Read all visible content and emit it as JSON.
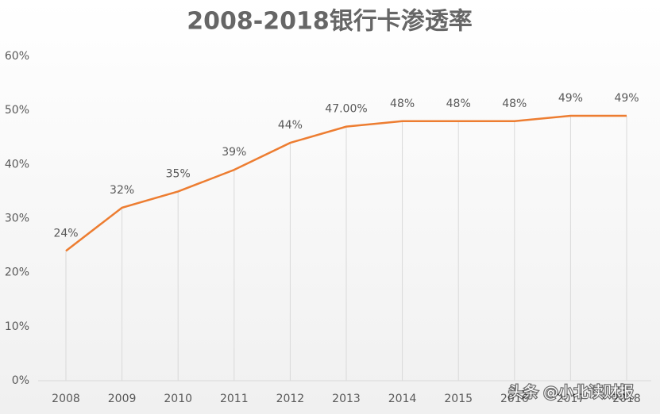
{
  "chart_data": {
    "type": "line",
    "title": "2008-2018银行卡渗透率",
    "categories": [
      "2008",
      "2009",
      "2010",
      "2011",
      "2012",
      "2013",
      "2014",
      "2015",
      "2016",
      "2017",
      "2018"
    ],
    "values": [
      24,
      32,
      35,
      39,
      44,
      47,
      48,
      48,
      48,
      49,
      49
    ],
    "value_labels": [
      "24%",
      "32%",
      "35%",
      "39%",
      "44%",
      "47.00%",
      "48%",
      "48%",
      "48%",
      "49%",
      "49%"
    ],
    "color": "#ed7d31",
    "ylim": [
      0,
      60
    ],
    "yticks": [
      {
        "value": 0,
        "label": "0%"
      },
      {
        "value": 10,
        "label": "10%"
      },
      {
        "value": 20,
        "label": "20%"
      },
      {
        "value": 30,
        "label": "30%"
      },
      {
        "value": 40,
        "label": "40%"
      },
      {
        "value": 50,
        "label": "50%"
      },
      {
        "value": 60,
        "label": "60%"
      }
    ],
    "drop_lines": true,
    "grid": false,
    "watermark": "头条 @小北读财报"
  }
}
